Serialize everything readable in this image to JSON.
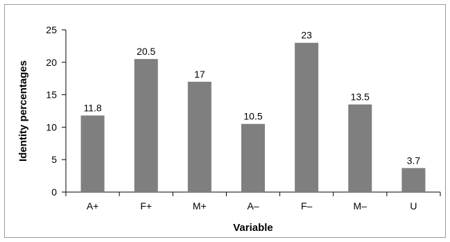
{
  "chart_data": {
    "type": "bar",
    "categories": [
      "A+",
      "F+",
      "M+",
      "A–",
      "F–",
      "M–",
      "U"
    ],
    "values": [
      11.8,
      20.5,
      17,
      10.5,
      23,
      13.5,
      3.7
    ],
    "data_labels": [
      "11.8",
      "20.5",
      "17",
      "10.5",
      "23",
      "13.5",
      "3.7"
    ],
    "xlabel": "Variable",
    "ylabel": "Identity percentages",
    "ylim": [
      0,
      25
    ],
    "yticks": [
      "0",
      "5",
      "10",
      "15",
      "20",
      "25"
    ],
    "bar_color": "#7f7f7f",
    "grid": false,
    "legend": "none"
  }
}
